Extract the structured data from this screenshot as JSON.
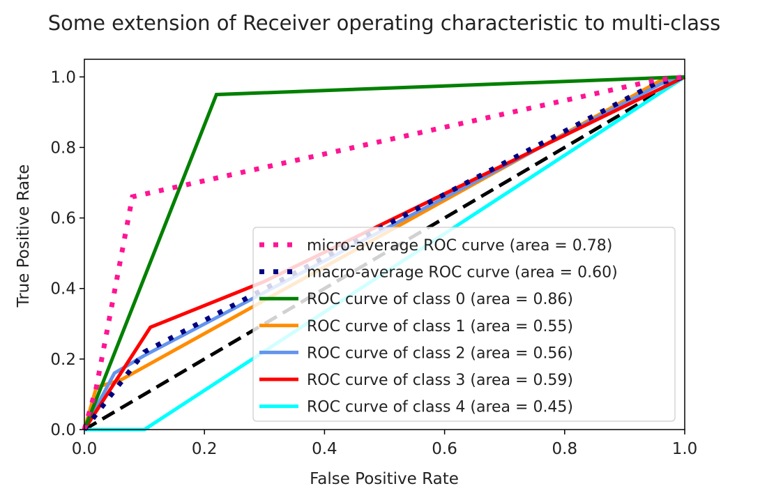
{
  "chart_data": {
    "type": "line",
    "title": "Some extension of Receiver operating characteristic to multi-class",
    "xlabel": "False Positive Rate",
    "ylabel": "True Positive Rate",
    "xlim": [
      0.0,
      1.0
    ],
    "ylim": [
      0.0,
      1.05
    ],
    "xticks": [
      0.0,
      0.2,
      0.4,
      0.6,
      0.8,
      1.0
    ],
    "yticks": [
      0.0,
      0.2,
      0.4,
      0.6,
      0.8,
      1.0
    ],
    "xtick_labels": [
      "0.0",
      "0.2",
      "0.4",
      "0.6",
      "0.8",
      "1.0"
    ],
    "ytick_labels": [
      "0.0",
      "0.2",
      "0.4",
      "0.6",
      "0.8",
      "1.0"
    ],
    "legend_position": "lower-right",
    "series": [
      {
        "name": "chance",
        "label": null,
        "color": "#000000",
        "style": "dashed",
        "x": [
          0.0,
          1.0
        ],
        "y": [
          0.0,
          1.0
        ]
      },
      {
        "name": "class-4",
        "label": "ROC curve of class 4 (area = 0.45)",
        "color": "#00ffff",
        "style": "solid",
        "x": [
          0.0,
          0.1,
          1.0
        ],
        "y": [
          0.0,
          0.0,
          1.0
        ]
      },
      {
        "name": "class-1",
        "label": "ROC curve of class 1 (area = 0.55)",
        "color": "#ff8c00",
        "style": "solid",
        "x": [
          0.0,
          0.02,
          0.06,
          0.96,
          1.0
        ],
        "y": [
          0.0,
          0.12,
          0.14,
          0.99,
          1.0
        ]
      },
      {
        "name": "class-2",
        "label": "ROC curve of class 2 (area = 0.56)",
        "color": "#6495ed",
        "style": "solid",
        "x": [
          0.0,
          0.05,
          0.1,
          0.96,
          1.0
        ],
        "y": [
          0.0,
          0.16,
          0.21,
          0.98,
          1.0
        ]
      },
      {
        "name": "class-3",
        "label": "ROC curve of class 3 (area = 0.59)",
        "color": "#ff0000",
        "style": "solid",
        "x": [
          0.0,
          0.11,
          0.3,
          1.0
        ],
        "y": [
          0.0,
          0.29,
          0.42,
          1.0
        ]
      },
      {
        "name": "class-0",
        "label": "ROC curve of class 0 (area = 0.86)",
        "color": "#008000",
        "style": "solid",
        "x": [
          0.0,
          0.22,
          1.0
        ],
        "y": [
          0.0,
          0.95,
          1.0
        ]
      },
      {
        "name": "macro-average",
        "label": "macro-average ROC curve (area = 0.60)",
        "color": "#000080",
        "style": "dotted",
        "x": [
          0.0,
          0.1,
          0.95,
          1.0
        ],
        "y": [
          0.0,
          0.22,
          0.98,
          1.0
        ]
      },
      {
        "name": "micro-average",
        "label": "micro-average ROC curve (area = 0.78)",
        "color": "#ff1493",
        "style": "dotted",
        "x": [
          0.0,
          0.02,
          0.08,
          0.95,
          1.0
        ],
        "y": [
          0.0,
          0.12,
          0.66,
          0.99,
          1.0
        ]
      }
    ]
  }
}
